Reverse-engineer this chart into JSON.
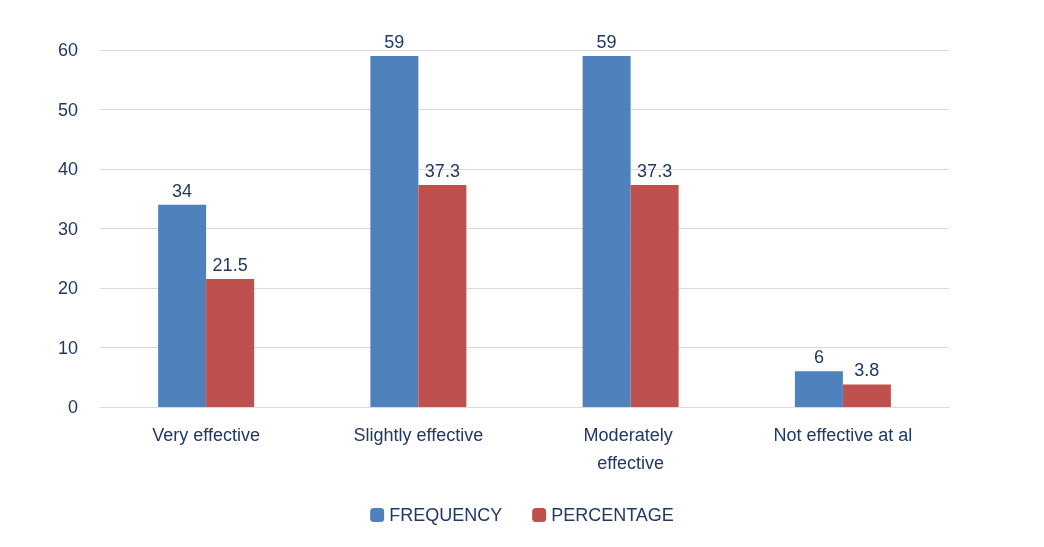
{
  "chart_data": {
    "type": "bar",
    "categories": [
      "Very effective",
      "Slightly effective",
      "Moderately effective",
      "Not effective at al"
    ],
    "series": [
      {
        "name": "FREQUENCY",
        "color": "#4f81bd",
        "values": [
          34,
          59,
          59,
          6
        ]
      },
      {
        "name": "PERCENTAGE",
        "color": "#c0504d",
        "values": [
          21.5,
          37.3,
          37.3,
          3.8
        ]
      }
    ],
    "ylim": [
      0,
      60
    ],
    "yticks": [
      0,
      10,
      20,
      30,
      40,
      50,
      60
    ],
    "grid": "y",
    "legend": "bottom",
    "data_labels": true
  }
}
